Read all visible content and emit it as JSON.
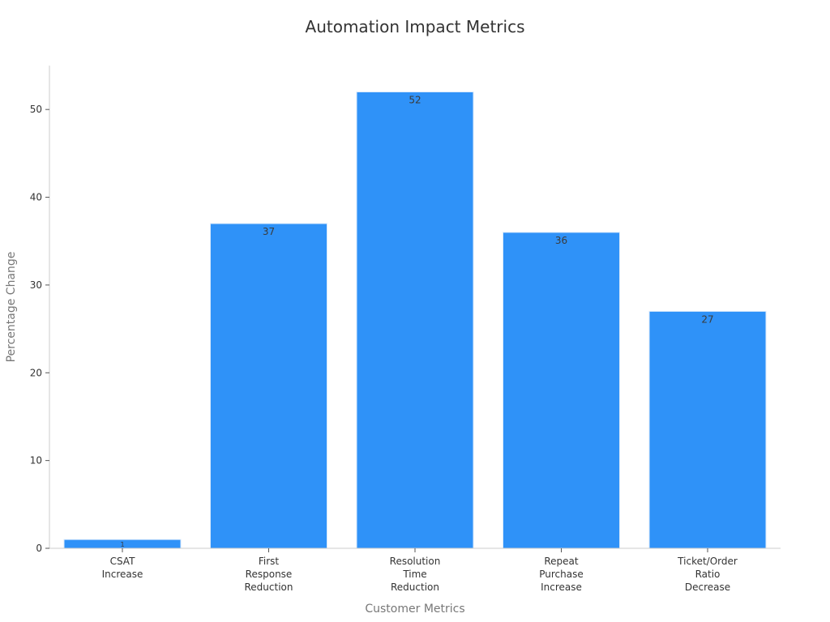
{
  "chart_data": {
    "type": "bar",
    "title": "Automation Impact Metrics",
    "xlabel": "Customer Metrics",
    "ylabel": "Percentage Change",
    "categories": [
      [
        "CSAT",
        "Increase"
      ],
      [
        "First",
        "Response",
        "Reduction"
      ],
      [
        "Resolution",
        "Time",
        "Reduction"
      ],
      [
        "Repeat",
        "Purchase",
        "Increase"
      ],
      [
        "Ticket/Order",
        "Ratio",
        "Decrease"
      ]
    ],
    "values": [
      1,
      37,
      52,
      36,
      27
    ],
    "data_labels": [
      "1",
      "37",
      "52",
      "36",
      "27"
    ],
    "ylim": [
      0,
      55
    ],
    "yticks": [
      0,
      10,
      20,
      30,
      40,
      50
    ],
    "grid": false,
    "legend": "none",
    "colors": {
      "bar": "#2f92f8",
      "bar_edge": "#d9e9fb",
      "axis": "#cccccc",
      "text": "#333333",
      "axis_title": "#777777"
    }
  }
}
